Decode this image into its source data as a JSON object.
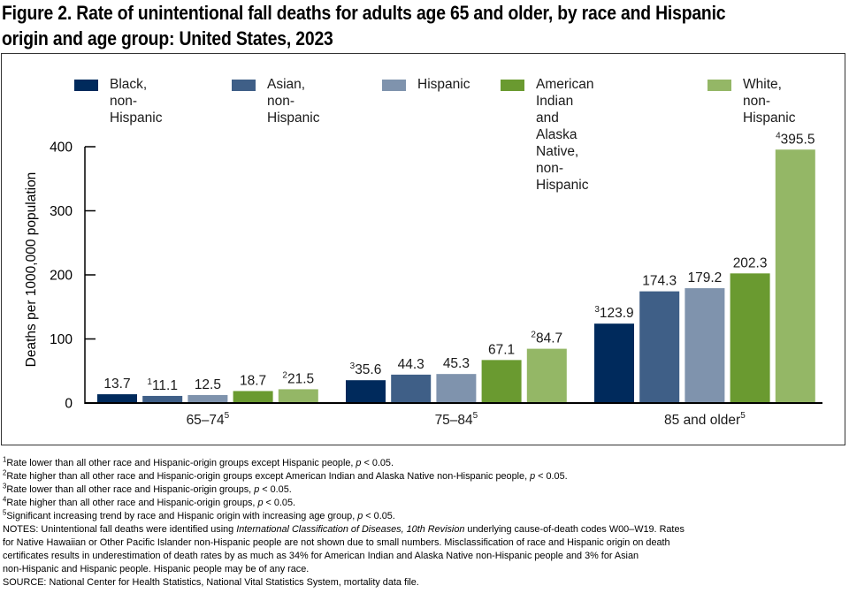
{
  "title": {
    "line1": "Figure 2. Rate of unintentional fall deaths for adults age 65 and older, by race and Hispanic",
    "line2": "origin and age group: United States, 2023"
  },
  "chart_data": {
    "type": "bar",
    "title": "Figure 2. Rate of unintentional fall deaths for adults age 65 and older, by race and Hispanic origin and age group: United States, 2023",
    "xlabel": "",
    "ylabel": "Deaths per 1000,000 population",
    "ylim": [
      0,
      400
    ],
    "yticks": [
      0,
      100,
      200,
      300,
      400
    ],
    "grid": false,
    "legend_position": "top",
    "categories": [
      "65–74",
      "75–84",
      "85 and older"
    ],
    "category_superscripts": [
      "5",
      "5",
      "5"
    ],
    "series": [
      {
        "name": "Black, non-Hispanic",
        "legend_label": "Black,\nnon-Hispanic",
        "color": "#002a5c",
        "values": [
          13.7,
          35.6,
          123.9
        ],
        "superscripts": [
          "",
          "3",
          "3"
        ]
      },
      {
        "name": "Asian, non-Hispanic",
        "legend_label": "Asian,\nnon-Hispanic",
        "color": "#3f5f87",
        "values": [
          11.1,
          44.3,
          174.3
        ],
        "superscripts": [
          "1",
          "",
          ""
        ]
      },
      {
        "name": "Hispanic",
        "legend_label": "Hispanic",
        "color": "#7f93ad",
        "values": [
          12.5,
          45.3,
          179.2
        ],
        "superscripts": [
          "",
          "",
          ""
        ]
      },
      {
        "name": "American Indian and Alaska Native, non-Hispanic",
        "legend_label": "American Indian and\nAlaska Native,\nnon-Hispanic",
        "color": "#6a9a30",
        "values": [
          18.7,
          67.1,
          202.3
        ],
        "superscripts": [
          "",
          "",
          ""
        ]
      },
      {
        "name": "White, non-Hispanic",
        "legend_label": "White,\nnon-Hispanic",
        "color": "#94b766",
        "values": [
          21.5,
          84.7,
          395.5
        ],
        "superscripts": [
          "2",
          "2",
          "4"
        ]
      }
    ]
  },
  "footnotes": [
    {
      "mark": "1",
      "text": "Rate lower than all other race and Hispanic-origin groups except Hispanic people, ",
      "p": "p",
      "tail": " < 0.05."
    },
    {
      "mark": "2",
      "text": "Rate higher than all other race and Hispanic-origin groups except American Indian and Alaska Native non-Hispanic people, ",
      "p": "p",
      "tail": " < 0.05."
    },
    {
      "mark": "3",
      "text": "Rate lower than all other race and Hispanic-origin groups, ",
      "p": "p",
      "tail": " < 0.05."
    },
    {
      "mark": "4",
      "text": "Rate higher than all other race and Hispanic-origin groups, ",
      "p": "p",
      "tail": " < 0.05."
    },
    {
      "mark": "5",
      "text": "Significant increasing trend by race and Hispanic origin with increasing age group, ",
      "p": "p",
      "tail": " < 0.05."
    }
  ],
  "notes": {
    "prefix": "NOTES: Unintentional fall deaths were identified using ",
    "italic": "International Classification of Diseases, 10th Revision",
    "line1_tail": " underlying cause-of-death codes W00–W19. Rates",
    "line2": "for Native Hawaiian or Other Pacific Islander non-Hispanic people are not shown due to small numbers. Misclassification of race and Hispanic origin on death",
    "line3": "certificates results in underestimation of death rates by as much as 34% for American Indian and Alaska Native non-Hispanic people and 3% for Asian",
    "line4": "non-Hispanic and Hispanic people. Hispanic people may be of any race.",
    "source": "SOURCE: National Center for Health Statistics, National Vital Statistics System, mortality data file."
  }
}
